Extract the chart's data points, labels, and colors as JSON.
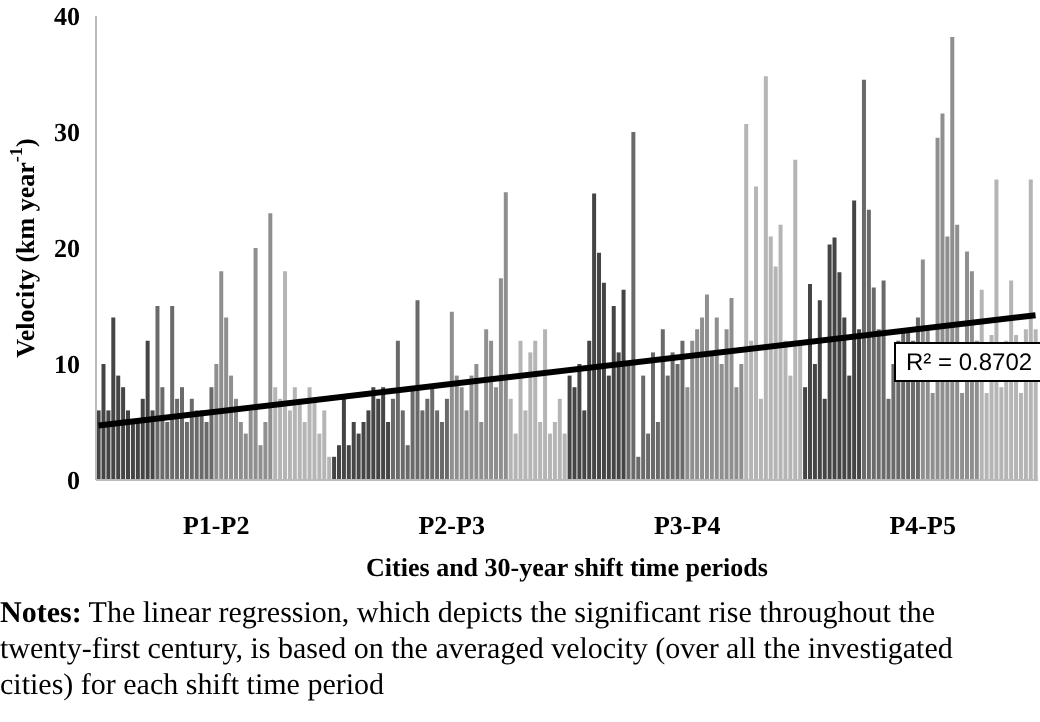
{
  "chart_data": {
    "type": "bar",
    "xlabel": "Cities and 30-year shift time periods",
    "ylabel": "Velocity (km year$^{-1}$)",
    "categories": [
      null,
      null,
      null,
      null,
      null,
      null,
      null,
      null,
      null,
      null,
      null,
      null,
      null,
      null,
      null,
      null,
      null,
      null,
      null,
      null,
      null,
      null,
      null,
      null,
      "P1-P2",
      null,
      null,
      null,
      null,
      null,
      null,
      null,
      null,
      null,
      null,
      null,
      null,
      null,
      null,
      null,
      null,
      null,
      null,
      null,
      null,
      null,
      null,
      null,
      null,
      null,
      null,
      null,
      null,
      null,
      null,
      null,
      null,
      null,
      null,
      null,
      null,
      null,
      null,
      null,
      null,
      null,
      null,
      null,
      null,
      null,
      null,
      null,
      "P2-P3",
      null,
      null,
      null,
      null,
      null,
      null,
      null,
      null,
      null,
      null,
      null,
      null,
      null,
      null,
      null,
      null,
      null,
      null,
      null,
      null,
      null,
      null,
      null,
      null,
      null,
      null,
      null,
      null,
      null,
      null,
      null,
      null,
      null,
      null,
      null,
      null,
      null,
      null,
      null,
      null,
      null,
      null,
      null,
      null,
      null,
      null,
      null,
      "P3-P4",
      null,
      null,
      null,
      null,
      null,
      null,
      null,
      null,
      null,
      null,
      null,
      null,
      null,
      null,
      null,
      null,
      null,
      null,
      null,
      null,
      null,
      null,
      null,
      null,
      null,
      null,
      null,
      null,
      null,
      null,
      null,
      null,
      null,
      null,
      null,
      null,
      null,
      null,
      null,
      null,
      null,
      null,
      null,
      null,
      null,
      null,
      null,
      "P4-P5",
      null,
      null,
      null,
      null,
      null,
      null,
      null,
      null,
      null,
      null,
      null,
      null,
      null,
      null,
      null,
      null,
      null,
      null,
      null,
      null,
      null,
      null,
      null
    ],
    "series": [
      {
        "values": [
          6,
          10,
          6,
          14,
          9,
          8,
          6,
          5,
          5,
          7,
          12,
          6,
          15,
          8,
          5,
          15,
          7,
          8,
          5,
          7,
          6,
          6,
          5,
          8,
          10,
          18,
          14,
          9,
          7,
          5,
          4,
          6,
          20,
          3,
          5,
          23,
          8,
          7,
          18,
          6,
          8,
          7,
          5,
          8,
          7,
          4,
          6,
          2,
          2,
          3,
          7,
          3,
          5,
          4,
          5,
          6,
          8,
          7,
          8,
          5,
          7,
          12,
          6,
          3,
          8,
          15.5,
          6,
          7,
          8,
          6,
          5,
          7,
          14.5,
          9,
          8,
          6,
          9,
          10,
          5,
          13,
          12,
          8,
          17.4,
          24.8,
          7,
          4,
          12,
          6,
          11,
          12,
          5,
          13,
          4,
          5,
          7,
          4,
          9,
          8,
          10,
          6,
          12,
          24.7,
          19.6,
          17,
          9,
          15,
          11,
          16.4,
          10,
          30,
          2,
          9,
          4,
          11,
          5,
          13,
          9,
          11,
          10,
          12,
          8,
          12,
          13,
          14,
          16,
          11,
          14,
          10,
          13,
          15.7,
          8,
          10,
          30.7,
          12,
          25.3,
          7,
          34.8,
          21,
          18.4,
          22,
          12,
          9,
          27.6,
          12,
          8,
          16.9,
          10,
          15.5,
          7,
          20.3,
          20.9,
          17.9,
          14,
          9,
          24.1,
          13,
          34.5,
          23.3,
          16.6,
          13,
          17.2,
          7,
          10,
          12,
          13,
          13,
          12,
          14,
          19,
          13,
          7.5,
          29.5,
          31.6,
          21,
          38.2,
          22,
          7.5,
          19.7,
          18,
          12,
          16.4,
          7.5,
          12.5,
          25.9,
          8,
          12,
          17.2,
          12.5,
          7.5,
          13,
          25.9,
          13
        ],
        "colors": [
          "#454545",
          "#454545",
          "#454545",
          "#454545",
          "#454545",
          "#454545",
          "#454545",
          "#454545",
          "#454545",
          "#454545",
          "#454545",
          "#454545",
          "#6a6a6a",
          "#6a6a6a",
          "#6a6a6a",
          "#6a6a6a",
          "#6a6a6a",
          "#6a6a6a",
          "#6a6a6a",
          "#6a6a6a",
          "#6a6a6a",
          "#6a6a6a",
          "#6a6a6a",
          "#6a6a6a",
          "#8f8f8f",
          "#8f8f8f",
          "#8f8f8f",
          "#8f8f8f",
          "#8f8f8f",
          "#8f8f8f",
          "#8f8f8f",
          "#8f8f8f",
          "#8f8f8f",
          "#8f8f8f",
          "#8f8f8f",
          "#8f8f8f",
          "#b5b5b5",
          "#b5b5b5",
          "#b5b5b5",
          "#b5b5b5",
          "#b5b5b5",
          "#b5b5b5",
          "#b5b5b5",
          "#b5b5b5",
          "#b5b5b5",
          "#b5b5b5",
          "#b5b5b5",
          "#b5b5b5",
          "#454545",
          "#454545",
          "#454545",
          "#454545",
          "#454545",
          "#454545",
          "#454545",
          "#454545",
          "#454545",
          "#454545",
          "#454545",
          "#454545",
          "#6a6a6a",
          "#6a6a6a",
          "#6a6a6a",
          "#6a6a6a",
          "#6a6a6a",
          "#6a6a6a",
          "#6a6a6a",
          "#6a6a6a",
          "#6a6a6a",
          "#6a6a6a",
          "#6a6a6a",
          "#6a6a6a",
          "#8f8f8f",
          "#8f8f8f",
          "#8f8f8f",
          "#8f8f8f",
          "#8f8f8f",
          "#8f8f8f",
          "#8f8f8f",
          "#8f8f8f",
          "#8f8f8f",
          "#8f8f8f",
          "#8f8f8f",
          "#8f8f8f",
          "#b5b5b5",
          "#b5b5b5",
          "#b5b5b5",
          "#b5b5b5",
          "#b5b5b5",
          "#b5b5b5",
          "#b5b5b5",
          "#b5b5b5",
          "#b5b5b5",
          "#b5b5b5",
          "#b5b5b5",
          "#b5b5b5",
          "#454545",
          "#454545",
          "#454545",
          "#454545",
          "#454545",
          "#454545",
          "#454545",
          "#454545",
          "#454545",
          "#454545",
          "#454545",
          "#454545",
          "#6a6a6a",
          "#6a6a6a",
          "#6a6a6a",
          "#6a6a6a",
          "#6a6a6a",
          "#6a6a6a",
          "#6a6a6a",
          "#6a6a6a",
          "#6a6a6a",
          "#6a6a6a",
          "#6a6a6a",
          "#6a6a6a",
          "#8f8f8f",
          "#8f8f8f",
          "#8f8f8f",
          "#8f8f8f",
          "#8f8f8f",
          "#8f8f8f",
          "#8f8f8f",
          "#8f8f8f",
          "#8f8f8f",
          "#8f8f8f",
          "#8f8f8f",
          "#8f8f8f",
          "#b5b5b5",
          "#b5b5b5",
          "#b5b5b5",
          "#b5b5b5",
          "#b5b5b5",
          "#b5b5b5",
          "#b5b5b5",
          "#b5b5b5",
          "#b5b5b5",
          "#b5b5b5",
          "#b5b5b5",
          "#b5b5b5",
          "#454545",
          "#454545",
          "#454545",
          "#454545",
          "#454545",
          "#454545",
          "#454545",
          "#454545",
          "#454545",
          "#454545",
          "#454545",
          "#454545",
          "#6a6a6a",
          "#6a6a6a",
          "#6a6a6a",
          "#6a6a6a",
          "#6a6a6a",
          "#6a6a6a",
          "#6a6a6a",
          "#6a6a6a",
          "#6a6a6a",
          "#6a6a6a",
          "#6a6a6a",
          "#6a6a6a",
          "#8f8f8f",
          "#8f8f8f",
          "#8f8f8f",
          "#8f8f8f",
          "#8f8f8f",
          "#8f8f8f",
          "#8f8f8f",
          "#8f8f8f",
          "#8f8f8f",
          "#8f8f8f",
          "#8f8f8f",
          "#8f8f8f",
          "#b5b5b5",
          "#b5b5b5",
          "#b5b5b5",
          "#b5b5b5",
          "#b5b5b5",
          "#b5b5b5",
          "#b5b5b5",
          "#b5b5b5",
          "#b5b5b5",
          "#b5b5b5",
          "#b5b5b5",
          "#b5b5b5"
        ]
      },
      {
        "type": "line",
        "color": "#000000",
        "values": [
          4.7,
          null,
          null,
          null,
          null,
          null,
          null,
          null,
          null,
          null,
          null,
          null,
          null,
          null,
          null,
          null,
          null,
          null,
          null,
          null,
          null,
          null,
          null,
          null,
          null,
          null,
          null,
          null,
          null,
          null,
          null,
          null,
          null,
          null,
          null,
          null,
          null,
          null,
          null,
          null,
          null,
          null,
          null,
          null,
          null,
          null,
          null,
          null,
          null,
          null,
          null,
          null,
          null,
          null,
          null,
          null,
          null,
          null,
          null,
          null,
          null,
          null,
          null,
          null,
          null,
          null,
          null,
          null,
          null,
          null,
          null,
          null,
          null,
          null,
          null,
          null,
          null,
          null,
          null,
          null,
          null,
          null,
          null,
          null,
          null,
          null,
          null,
          null,
          null,
          null,
          null,
          null,
          null,
          null,
          null,
          null,
          null,
          null,
          null,
          null,
          null,
          null,
          null,
          null,
          null,
          null,
          null,
          null,
          null,
          null,
          null,
          null,
          null,
          null,
          null,
          null,
          null,
          null,
          null,
          null,
          null,
          null,
          null,
          null,
          null,
          null,
          null,
          null,
          null,
          null,
          null,
          null,
          null,
          null,
          null,
          null,
          null,
          null,
          null,
          null,
          null,
          null,
          null,
          null,
          null,
          null,
          null,
          null,
          null,
          null,
          null,
          null,
          null,
          null,
          null,
          null,
          null,
          null,
          null,
          null,
          null,
          null,
          null,
          null,
          null,
          null,
          null,
          null,
          null,
          null,
          null,
          null,
          null,
          null,
          null,
          null,
          null,
          null,
          null,
          null,
          null,
          null,
          null,
          null,
          null,
          null,
          null,
          null,
          null,
          null,
          null,
          14.2
        ]
      }
    ],
    "ylim": [
      0,
      40
    ],
    "yticks": [
      0,
      10,
      20,
      30,
      40
    ],
    "grid": false,
    "legend": false,
    "marker": "none",
    "annotations": [
      "R² = 0.8702",
      "Notes: The linear regression, which depicts the significant rise throughout the twenty-first century, is based on the averaged velocity (over all the investigated cities) for each shift time period"
    ]
  }
}
